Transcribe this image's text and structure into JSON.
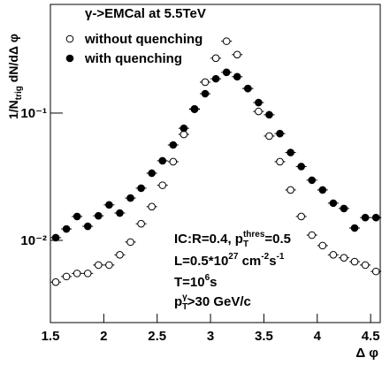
{
  "chart_data": {
    "type": "scatter",
    "y_label": [
      "1/N",
      "trig",
      " dN/d",
      "Δ φ"
    ],
    "x_label": "Δ φ",
    "log_y": true,
    "xlim": [
      1.5,
      4.59
    ],
    "ylim": [
      0.00226,
      0.714
    ],
    "xticks": [
      1.5,
      2,
      2.5,
      3,
      3.5,
      4,
      4.5
    ],
    "yticks": [
      {
        "value": 0.01,
        "label": "10⁻²"
      },
      {
        "value": 0.1,
        "label": "10⁻¹"
      }
    ],
    "legend_title": "γ->EMCal at 5.5TeV",
    "x": [
      1.55,
      1.65,
      1.75,
      1.85,
      1.95,
      2.05,
      2.15,
      2.25,
      2.35,
      2.45,
      2.55,
      2.65,
      2.75,
      2.85,
      2.95,
      3.05,
      3.15,
      3.25,
      3.35,
      3.45,
      3.55,
      3.65,
      3.75,
      3.85,
      3.95,
      4.05,
      4.15,
      4.25,
      4.35,
      4.45,
      4.55
    ],
    "series": [
      {
        "name": "without quenching",
        "color": "#000000",
        "marker": "open",
        "values": [
          0.0047,
          0.0052,
          0.0055,
          0.0055,
          0.0064,
          0.0064,
          0.0077,
          0.0097,
          0.0135,
          0.0184,
          0.0271,
          0.0415,
          0.068,
          0.108,
          0.175,
          0.27,
          0.367,
          0.288,
          0.156,
          0.103,
          0.066,
          0.0415,
          0.0249,
          0.0154,
          0.011,
          0.0091,
          0.0077,
          0.0073,
          0.0068,
          0.0064,
          0.0057
        ]
      },
      {
        "name": "with quenching",
        "color": "#000000",
        "marker": "filled",
        "values": [
          0.0105,
          0.0123,
          0.0154,
          0.0129,
          0.0156,
          0.019,
          0.0164,
          0.0215,
          0.0257,
          0.0337,
          0.0422,
          0.0562,
          0.076,
          0.107,
          0.142,
          0.186,
          0.209,
          0.193,
          0.156,
          0.121,
          0.097,
          0.069,
          0.049,
          0.038,
          0.0297,
          0.0249,
          0.0196,
          0.0178,
          0.0125,
          0.0151,
          0.0151
        ]
      }
    ],
    "annotations": [
      [
        "IC:R=0.4, p",
        "T",
        "thres",
        "=0.5"
      ],
      [
        "L=0.5*10",
        "27",
        " cm",
        "-2",
        "s",
        "-1"
      ],
      [
        "T=10",
        "6",
        "s"
      ],
      [
        "p",
        "T",
        "γ",
        ">30 GeV/c"
      ]
    ]
  }
}
